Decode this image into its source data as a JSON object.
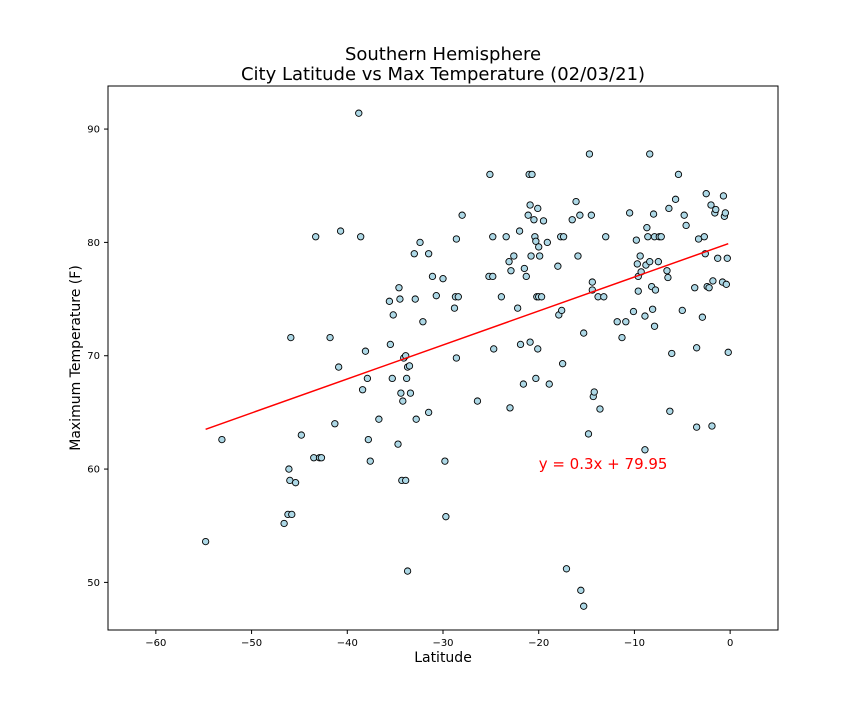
{
  "chart_data": {
    "type": "scatter",
    "title": [
      "Southern Hemisphere",
      "City Latitude vs Max Temperature (02/03/21)"
    ],
    "xlabel": "Latitude",
    "ylabel": "Maximum Temperature (F)",
    "xlim": [
      -65,
      5
    ],
    "ylim": [
      45.8,
      93.8
    ],
    "xticks": [
      -60,
      -50,
      -40,
      -30,
      -20,
      -10,
      0
    ],
    "yticks": [
      50,
      60,
      70,
      80,
      90
    ],
    "grid": false,
    "colors": {
      "marker_fill": "#add8e6",
      "marker_edge": "#000000",
      "regression_line": "#ff0000",
      "annotation": "#ff0000"
    },
    "regression": {
      "slope": 0.3,
      "intercept": 79.95,
      "x_range": [
        -54.8,
        -0.2
      ],
      "label": "y = 0.3x + 79.95",
      "label_anchor": [
        -20,
        60
      ]
    },
    "points": [
      [
        -54.8,
        53.6
      ],
      [
        -53.1,
        62.6
      ],
      [
        -46.6,
        55.2
      ],
      [
        -46.2,
        56
      ],
      [
        -46.1,
        60
      ],
      [
        -46.0,
        59
      ],
      [
        -45.8,
        56
      ],
      [
        -45.4,
        58.8
      ],
      [
        -45.9,
        71.6
      ],
      [
        -44.8,
        63
      ],
      [
        -43.5,
        61
      ],
      [
        -43.3,
        80.5
      ],
      [
        -42.9,
        61
      ],
      [
        -42.7,
        61
      ],
      [
        -41.8,
        71.6
      ],
      [
        -41.3,
        64
      ],
      [
        -40.9,
        69
      ],
      [
        -40.7,
        81
      ],
      [
        -38.8,
        91.4
      ],
      [
        -38.6,
        80.5
      ],
      [
        -38.4,
        67
      ],
      [
        -38.1,
        70.4
      ],
      [
        -37.8,
        62.6
      ],
      [
        -37.9,
        68
      ],
      [
        -37.6,
        60.7
      ],
      [
        -36.7,
        64.4
      ],
      [
        -35.6,
        74.8
      ],
      [
        -35.5,
        71
      ],
      [
        -35.3,
        68
      ],
      [
        -35.2,
        73.6
      ],
      [
        -34.6,
        76
      ],
      [
        -34.7,
        62.2
      ],
      [
        -34.5,
        75
      ],
      [
        -34.3,
        59
      ],
      [
        -34.4,
        66.7
      ],
      [
        -34.2,
        66
      ],
      [
        -34.1,
        69.8
      ],
      [
        -33.9,
        70
      ],
      [
        -33.9,
        59
      ],
      [
        -33.8,
        68
      ],
      [
        -33.7,
        69
      ],
      [
        -33.7,
        51
      ],
      [
        -33.5,
        69.1
      ],
      [
        -33.4,
        66.7
      ],
      [
        -33.0,
        79
      ],
      [
        -32.9,
        75
      ],
      [
        -32.8,
        64.4
      ],
      [
        -32.4,
        80
      ],
      [
        -32.1,
        73
      ],
      [
        -31.5,
        79
      ],
      [
        -31.5,
        65
      ],
      [
        -31.1,
        77
      ],
      [
        -30.7,
        75.3
      ],
      [
        -30.0,
        76.8
      ],
      [
        -29.8,
        60.7
      ],
      [
        -29.7,
        55.8
      ],
      [
        -28.8,
        74.2
      ],
      [
        -28.7,
        75.2
      ],
      [
        -28.6,
        80.3
      ],
      [
        -28.6,
        69.8
      ],
      [
        -28.4,
        75.2
      ],
      [
        -28.0,
        82.4
      ],
      [
        -26.4,
        66
      ],
      [
        -25.1,
        86
      ],
      [
        -25.2,
        77
      ],
      [
        -24.8,
        80.5
      ],
      [
        -24.8,
        77
      ],
      [
        -24.7,
        70.6
      ],
      [
        -23.9,
        75.2
      ],
      [
        -23.4,
        80.5
      ],
      [
        -23.1,
        78.3
      ],
      [
        -23.0,
        65.4
      ],
      [
        -22.9,
        77.5
      ],
      [
        -22.6,
        78.8
      ],
      [
        -22.2,
        74.2
      ],
      [
        -22.0,
        81
      ],
      [
        -21.9,
        71
      ],
      [
        -21.6,
        67.5
      ],
      [
        -21.5,
        77.7
      ],
      [
        -21.3,
        77
      ],
      [
        -21.1,
        82.4
      ],
      [
        -21.0,
        86
      ],
      [
        -20.9,
        83.3
      ],
      [
        -20.8,
        78.8
      ],
      [
        -20.7,
        86
      ],
      [
        -20.9,
        71.2
      ],
      [
        -20.5,
        82
      ],
      [
        -20.4,
        80.5
      ],
      [
        -20.3,
        68
      ],
      [
        -20.2,
        75.2
      ],
      [
        -20.3,
        80.1
      ],
      [
        -20.1,
        83
      ],
      [
        -20.0,
        79.6
      ],
      [
        -20.0,
        75.2
      ],
      [
        -19.9,
        78.8
      ],
      [
        -20.1,
        70.6
      ],
      [
        -19.7,
        75.2
      ],
      [
        -19.5,
        81.9
      ],
      [
        -19.1,
        80
      ],
      [
        -18.9,
        67.5
      ],
      [
        -18.0,
        77.9
      ],
      [
        -17.9,
        73.6
      ],
      [
        -17.7,
        80.5
      ],
      [
        -17.6,
        74
      ],
      [
        -17.5,
        69.3
      ],
      [
        -17.4,
        80.5
      ],
      [
        -17.1,
        51.2
      ],
      [
        -16.5,
        82
      ],
      [
        -16.1,
        83.6
      ],
      [
        -15.9,
        78.8
      ],
      [
        -15.7,
        82.4
      ],
      [
        -15.6,
        49.3
      ],
      [
        -15.3,
        47.9
      ],
      [
        -15.3,
        72
      ],
      [
        -14.8,
        63.1
      ],
      [
        -14.7,
        87.8
      ],
      [
        -14.5,
        82.4
      ],
      [
        -14.4,
        76.5
      ],
      [
        -14.4,
        75.8
      ],
      [
        -14.3,
        66.4
      ],
      [
        -14.2,
        66.8
      ],
      [
        -13.8,
        75.2
      ],
      [
        -13.6,
        65.3
      ],
      [
        -13.2,
        75.2
      ],
      [
        -13.0,
        80.5
      ],
      [
        -11.8,
        73
      ],
      [
        -11.3,
        71.6
      ],
      [
        -10.9,
        73
      ],
      [
        -10.5,
        82.6
      ],
      [
        -10.1,
        73.9
      ],
      [
        -9.8,
        80.2
      ],
      [
        -9.7,
        78.1
      ],
      [
        -9.6,
        75.7
      ],
      [
        -9.6,
        77
      ],
      [
        -9.4,
        78.8
      ],
      [
        -9.3,
        77.4
      ],
      [
        -8.9,
        73.5
      ],
      [
        -8.9,
        61.7
      ],
      [
        -8.8,
        78
      ],
      [
        -8.7,
        81.3
      ],
      [
        -8.6,
        80.5
      ],
      [
        -8.4,
        87.8
      ],
      [
        -8.4,
        78.3
      ],
      [
        -8.2,
        76.1
      ],
      [
        -8.1,
        74.1
      ],
      [
        -8.0,
        82.5
      ],
      [
        -7.9,
        72.6
      ],
      [
        -7.9,
        80.5
      ],
      [
        -7.8,
        75.8
      ],
      [
        -7.5,
        78.3
      ],
      [
        -7.4,
        80.5
      ],
      [
        -7.2,
        80.5
      ],
      [
        -6.6,
        77.5
      ],
      [
        -6.5,
        76.9
      ],
      [
        -6.4,
        83
      ],
      [
        -6.3,
        65.1
      ],
      [
        -6.1,
        70.2
      ],
      [
        -5.7,
        83.8
      ],
      [
        -5.4,
        86
      ],
      [
        -5.0,
        74
      ],
      [
        -4.8,
        82.4
      ],
      [
        -4.6,
        81.5
      ],
      [
        -3.7,
        76
      ],
      [
        -3.5,
        70.7
      ],
      [
        -3.5,
        63.7
      ],
      [
        -3.3,
        80.3
      ],
      [
        -2.9,
        73.4
      ],
      [
        -2.7,
        80.5
      ],
      [
        -2.6,
        79
      ],
      [
        -2.5,
        84.3
      ],
      [
        -2.4,
        76.1
      ],
      [
        -2.2,
        76
      ],
      [
        -2.0,
        83.3
      ],
      [
        -1.9,
        63.8
      ],
      [
        -1.8,
        76.6
      ],
      [
        -1.6,
        82.6
      ],
      [
        -1.5,
        82.9
      ],
      [
        -1.3,
        78.6
      ],
      [
        -0.8,
        76.5
      ],
      [
        -0.7,
        84.1
      ],
      [
        -0.6,
        82.3
      ],
      [
        -0.5,
        82.6
      ],
      [
        -0.4,
        76.3
      ],
      [
        -0.3,
        78.6
      ],
      [
        -0.2,
        70.3
      ]
    ]
  }
}
